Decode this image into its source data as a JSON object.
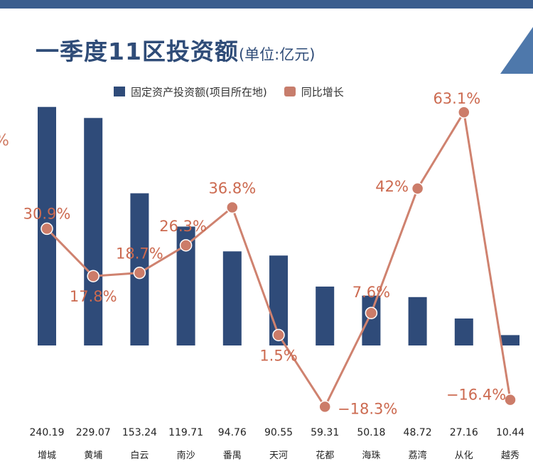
{
  "title": "一季度11区投资额",
  "title_unit": "(单位:亿元)",
  "edge_fragment": "%",
  "colors": {
    "bar": "#2f4b79",
    "line": "#cf826f",
    "label": "#cc6a50",
    "accent": "#3b5e8e"
  },
  "chart_data": {
    "type": "bar",
    "categories": [
      "增城",
      "黄埔",
      "白云",
      "南沙",
      "番禺",
      "天河",
      "花都",
      "海珠",
      "荔湾",
      "从化",
      "越秀"
    ],
    "series": [
      {
        "name": "固定资产投资额(项目所在地)",
        "type": "bar",
        "values": [
          240.19,
          229.07,
          153.24,
          119.71,
          94.76,
          90.55,
          59.31,
          50.18,
          48.72,
          27.16,
          10.44
        ],
        "labels": [
          "240.19",
          "229.07",
          "153.24",
          "119.71",
          "94.76",
          "90.55",
          "59.31",
          "50.18",
          "48.72",
          "27.16",
          "10.44"
        ]
      },
      {
        "name": "同比增长",
        "type": "line",
        "values": [
          30.9,
          17.8,
          18.7,
          26.3,
          36.8,
          1.5,
          -18.3,
          7.6,
          42,
          63.1,
          -16.4
        ],
        "labels": [
          "30.9%",
          "17.8%",
          "18.7%",
          "26.3%",
          "36.8%",
          "1.5%",
          "−18.3%",
          "7.6%",
          "42%",
          "63.1%",
          "−16.4%"
        ]
      }
    ],
    "legend_position": "top",
    "grid": false
  }
}
